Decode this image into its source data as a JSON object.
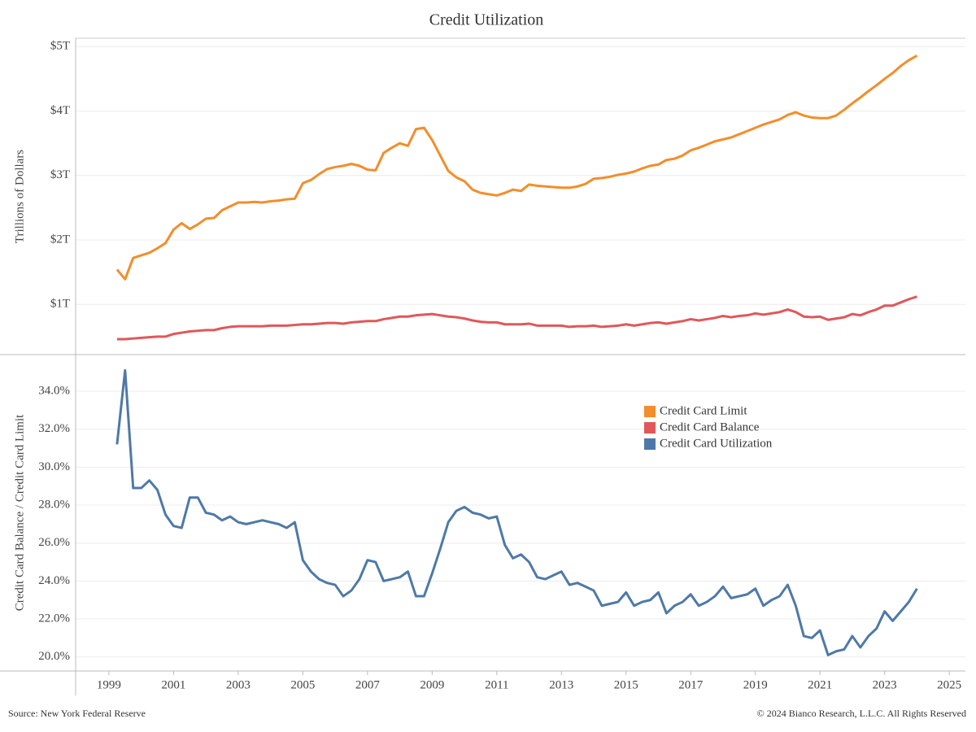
{
  "chart_data": [
    {
      "type": "line",
      "title": "Credit Utilization",
      "y_label": "Trillions of Dollars",
      "x": [
        1999.25,
        1999.5,
        1999.75,
        2000,
        2000.25,
        2000.5,
        2000.75,
        2001,
        2001.25,
        2001.5,
        2001.75,
        2002,
        2002.25,
        2002.5,
        2002.75,
        2003,
        2003.25,
        2003.5,
        2003.75,
        2004,
        2004.25,
        2004.5,
        2004.75,
        2005,
        2005.25,
        2005.5,
        2005.75,
        2006,
        2006.25,
        2006.5,
        2006.75,
        2007,
        2007.25,
        2007.5,
        2007.75,
        2008,
        2008.25,
        2008.5,
        2008.75,
        2009,
        2009.25,
        2009.5,
        2009.75,
        2010,
        2010.25,
        2010.5,
        2010.75,
        2011,
        2011.25,
        2011.5,
        2011.75,
        2012,
        2012.25,
        2012.5,
        2012.75,
        2013,
        2013.25,
        2013.5,
        2013.75,
        2014,
        2014.25,
        2014.5,
        2014.75,
        2015,
        2015.25,
        2015.5,
        2015.75,
        2016,
        2016.25,
        2016.5,
        2016.75,
        2017,
        2017.25,
        2017.5,
        2017.75,
        2018,
        2018.25,
        2018.5,
        2018.75,
        2019,
        2019.25,
        2019.5,
        2019.75,
        2020,
        2020.25,
        2020.5,
        2020.75,
        2021,
        2021.25,
        2021.5,
        2021.75,
        2022,
        2022.25,
        2022.5,
        2022.75,
        2023,
        2023.25,
        2023.5,
        2023.75,
        2024
      ],
      "series": [
        {
          "name": "Credit Card Limit",
          "color": "#f28e2b",
          "values": [
            1.54,
            1.39,
            1.72,
            1.76,
            1.8,
            1.87,
            1.95,
            2.16,
            2.26,
            2.17,
            2.24,
            2.33,
            2.34,
            2.46,
            2.52,
            2.58,
            2.58,
            2.59,
            2.58,
            2.6,
            2.61,
            2.63,
            2.64,
            2.88,
            2.93,
            3.02,
            3.1,
            3.13,
            3.15,
            3.18,
            3.15,
            3.09,
            3.08,
            3.35,
            3.43,
            3.5,
            3.46,
            3.72,
            3.74,
            3.55,
            3.31,
            3.07,
            2.97,
            2.91,
            2.78,
            2.73,
            2.71,
            2.69,
            2.73,
            2.78,
            2.76,
            2.86,
            2.84,
            2.83,
            2.82,
            2.81,
            2.81,
            2.83,
            2.87,
            2.95,
            2.96,
            2.98,
            3.01,
            3.03,
            3.06,
            3.11,
            3.15,
            3.17,
            3.24,
            3.26,
            3.31,
            3.39,
            3.43,
            3.48,
            3.53,
            3.56,
            3.59,
            3.64,
            3.69,
            3.74,
            3.79,
            3.83,
            3.87,
            3.94,
            3.98,
            3.93,
            3.9,
            3.89,
            3.89,
            3.93,
            4.02,
            4.12,
            4.21,
            4.31,
            4.4,
            4.5,
            4.59,
            4.7,
            4.79,
            4.86
          ]
        },
        {
          "name": "Credit Card Balance",
          "color": "#e15759",
          "values": [
            0.46,
            0.46,
            0.47,
            0.48,
            0.49,
            0.5,
            0.5,
            0.54,
            0.56,
            0.58,
            0.59,
            0.6,
            0.6,
            0.63,
            0.65,
            0.66,
            0.66,
            0.66,
            0.66,
            0.67,
            0.67,
            0.67,
            0.68,
            0.69,
            0.69,
            0.7,
            0.71,
            0.71,
            0.7,
            0.72,
            0.73,
            0.74,
            0.74,
            0.77,
            0.79,
            0.81,
            0.81,
            0.83,
            0.84,
            0.85,
            0.83,
            0.81,
            0.8,
            0.78,
            0.75,
            0.73,
            0.72,
            0.72,
            0.69,
            0.69,
            0.69,
            0.7,
            0.67,
            0.67,
            0.67,
            0.67,
            0.65,
            0.66,
            0.66,
            0.67,
            0.65,
            0.66,
            0.67,
            0.69,
            0.67,
            0.69,
            0.71,
            0.72,
            0.7,
            0.72,
            0.74,
            0.77,
            0.75,
            0.77,
            0.79,
            0.82,
            0.8,
            0.82,
            0.83,
            0.86,
            0.84,
            0.86,
            0.88,
            0.92,
            0.88,
            0.81,
            0.8,
            0.81,
            0.76,
            0.78,
            0.8,
            0.85,
            0.83,
            0.88,
            0.92,
            0.98,
            0.98,
            1.03,
            1.08,
            1.12
          ]
        }
      ],
      "xlim": [
        1997.97,
        2025.5
      ],
      "ylim": [
        0.22,
        5.13
      ],
      "yticks": [
        {
          "value": 1,
          "label": "$1T"
        },
        {
          "value": 2,
          "label": "$2T"
        },
        {
          "value": 3,
          "label": "$3T"
        },
        {
          "value": 4,
          "label": "$4T"
        },
        {
          "value": 5,
          "label": "$5T"
        }
      ],
      "grid": true
    },
    {
      "type": "line",
      "y_label": "Credit Card Balance / Credit Card Limit",
      "x": [
        1999.25,
        1999.5,
        1999.75,
        2000,
        2000.25,
        2000.5,
        2000.75,
        2001,
        2001.25,
        2001.5,
        2001.75,
        2002,
        2002.25,
        2002.5,
        2002.75,
        2003,
        2003.25,
        2003.5,
        2003.75,
        2004,
        2004.25,
        2004.5,
        2004.75,
        2005,
        2005.25,
        2005.5,
        2005.75,
        2006,
        2006.25,
        2006.5,
        2006.75,
        2007,
        2007.25,
        2007.5,
        2007.75,
        2008,
        2008.25,
        2008.5,
        2008.75,
        2009,
        2009.25,
        2009.5,
        2009.75,
        2010,
        2010.25,
        2010.5,
        2010.75,
        2011,
        2011.25,
        2011.5,
        2011.75,
        2012,
        2012.25,
        2012.5,
        2012.75,
        2013,
        2013.25,
        2013.5,
        2013.75,
        2014,
        2014.25,
        2014.5,
        2014.75,
        2015,
        2015.25,
        2015.5,
        2015.75,
        2016,
        2016.25,
        2016.5,
        2016.75,
        2017,
        2017.25,
        2017.5,
        2017.75,
        2018,
        2018.25,
        2018.5,
        2018.75,
        2019,
        2019.25,
        2019.5,
        2019.75,
        2020,
        2020.25,
        2020.5,
        2020.75,
        2021,
        2021.25,
        2021.5,
        2021.75,
        2022,
        2022.25,
        2022.5,
        2022.75,
        2023,
        2023.25,
        2023.5,
        2023.75,
        2024
      ],
      "series": [
        {
          "name": "Credit Card Utilization",
          "color": "#4e79a7",
          "values": [
            31.2,
            35.1,
            28.9,
            28.9,
            29.3,
            28.8,
            27.5,
            26.9,
            26.8,
            28.4,
            28.4,
            27.6,
            27.5,
            27.2,
            27.4,
            27.1,
            27.0,
            27.1,
            27.2,
            27.1,
            27.0,
            26.8,
            27.1,
            25.1,
            24.5,
            24.1,
            23.9,
            23.8,
            23.2,
            23.5,
            24.1,
            25.1,
            25.0,
            24.0,
            24.1,
            24.2,
            24.5,
            23.2,
            23.2,
            24.4,
            25.7,
            27.1,
            27.7,
            27.9,
            27.6,
            27.5,
            27.3,
            27.4,
            25.9,
            25.2,
            25.4,
            25.0,
            24.2,
            24.1,
            24.3,
            24.5,
            23.8,
            23.9,
            23.7,
            23.5,
            22.7,
            22.8,
            22.9,
            23.4,
            22.7,
            22.9,
            23.0,
            23.4,
            22.3,
            22.7,
            22.9,
            23.3,
            22.7,
            22.9,
            23.2,
            23.7,
            23.1,
            23.2,
            23.3,
            23.6,
            22.7,
            23.0,
            23.2,
            23.8,
            22.7,
            21.1,
            21.0,
            21.4,
            20.1,
            20.3,
            20.4,
            21.1,
            20.5,
            21.1,
            21.5,
            22.4,
            21.9,
            22.4,
            22.9,
            23.6
          ]
        }
      ],
      "xlim": [
        1997.97,
        2025.5
      ],
      "ylim": [
        19.26,
        35.93
      ],
      "xticks": [
        1999,
        2001,
        2003,
        2005,
        2007,
        2009,
        2011,
        2013,
        2015,
        2017,
        2019,
        2021,
        2023,
        2025
      ],
      "yticks": [
        {
          "value": 20,
          "label": "20.0%"
        },
        {
          "value": 22,
          "label": "22.0%"
        },
        {
          "value": 24,
          "label": "24.0%"
        },
        {
          "value": 26,
          "label": "26.0%"
        },
        {
          "value": 28,
          "label": "28.0%"
        },
        {
          "value": 30,
          "label": "30.0%"
        },
        {
          "value": 32,
          "label": "32.0%"
        },
        {
          "value": 34,
          "label": "34.0%"
        }
      ],
      "grid": true,
      "legend": "upper right"
    }
  ],
  "source": "Source: New York Federal Reserve",
  "copyright": "© 2024 Bianco Research, L.L.C. All Rights Reserved"
}
